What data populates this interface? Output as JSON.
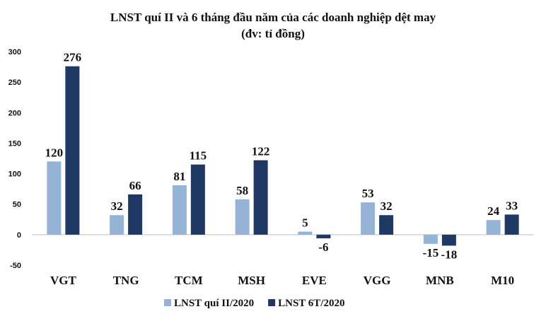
{
  "chart_data": {
    "type": "bar",
    "title": "LNST quí II và 6 tháng đầu năm của các doanh nghiệp dệt may",
    "subtitle": "(đv: tỉ đồng)",
    "categories": [
      "VGT",
      "TNG",
      "TCM",
      "MSH",
      "EVE",
      "VGG",
      "MNB",
      "M10"
    ],
    "series": [
      {
        "name": "LNST quí II/2020",
        "color": "#95b3d7",
        "values": [
          120,
          32,
          81,
          58,
          5,
          53,
          -15,
          24
        ]
      },
      {
        "name": "LNST 6T/2020",
        "color": "#1f3864",
        "values": [
          276,
          66,
          115,
          122,
          -6,
          32,
          -18,
          33
        ]
      }
    ],
    "ylim": [
      -50,
      300
    ],
    "yticks": [
      -50,
      0,
      50,
      100,
      150,
      200,
      250,
      300
    ],
    "grid": false,
    "legend": "bottom"
  }
}
